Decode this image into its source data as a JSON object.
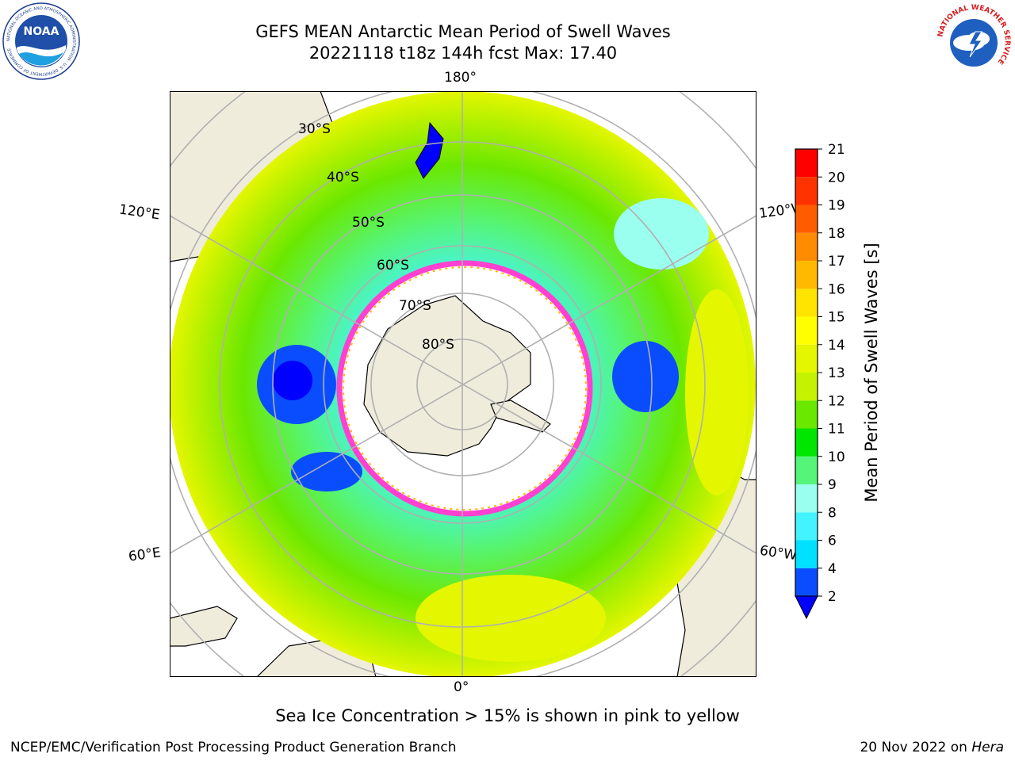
{
  "header": {
    "title_line1": "GEFS MEAN Antarctic Mean Period of Swell Waves",
    "title_line2": "20221118 t18z 144h fcst   Max: 17.40"
  },
  "logos": {
    "noaa_text": "NOAA",
    "noaa_ring_text": "NATIONAL OCEANIC AND ATMOSPHERIC ADMINISTRATION · U.S. DEPARTMENT OF COMMERCE",
    "nws_ring_text": "NATIONAL WEATHER SERVICE"
  },
  "map": {
    "projection": "south-polar-stereographic",
    "longitude_labels": {
      "top": "180°",
      "bottom": "0°",
      "left_upper": "120°E",
      "left_lower": "60°E",
      "right_upper": "120°W",
      "right_lower": "60°W"
    },
    "latitude_labels": [
      "30°S",
      "40°S",
      "50°S",
      "60°S",
      "70°S",
      "80°S"
    ],
    "colors": {
      "land": "#efecdc",
      "ocean_mask": "#ffffff",
      "grid": "#b0b0b0",
      "coast": "#000000"
    }
  },
  "colorbar": {
    "label": "Mean Period of Swell Waves [s]",
    "ticks": [
      "2",
      "4",
      "6",
      "8",
      "9",
      "10",
      "11",
      "12",
      "13",
      "14",
      "15",
      "16",
      "17",
      "18",
      "19",
      "20",
      "21"
    ],
    "colors": [
      "#0a4dff",
      "#00e0ff",
      "#43f3ff",
      "#9bfff0",
      "#55f57a",
      "#00e600",
      "#6be800",
      "#c4f300",
      "#e4f600",
      "#ffff00",
      "#ffe400",
      "#ffba00",
      "#ff8c00",
      "#ff5c00",
      "#ff3200",
      "#ff0000"
    ],
    "extend_min_color": "#0000ff",
    "units": "s"
  },
  "notes": {
    "sea_ice": "Sea Ice Concentration > 15% is shown in pink to yellow",
    "credit_left": "NCEP/EMC/Verification Post Processing Product Generation Branch",
    "credit_right_prefix": "20 Nov 2022 on ",
    "credit_right_italic": "Hera"
  }
}
